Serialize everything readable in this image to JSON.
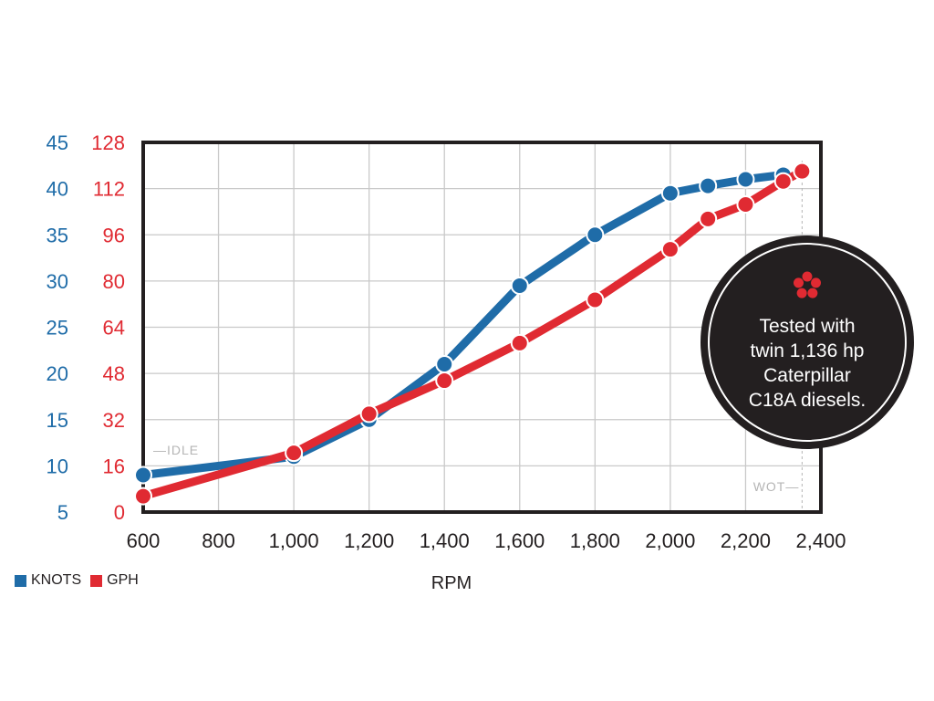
{
  "chart_data": {
    "type": "line",
    "xlabel": "RPM",
    "x_ticks": [
      "600",
      "800",
      "1,000",
      "1,200",
      "1,400",
      "1,600",
      "1,800",
      "2,000",
      "2,200",
      "2,400"
    ],
    "xlim": [
      600,
      2400
    ],
    "left_axis": {
      "ticks": [
        "45",
        "40",
        "35",
        "30",
        "25",
        "20",
        "15",
        "10",
        "5"
      ],
      "ylim": [
        5,
        45
      ],
      "color": "#1f6ca8"
    },
    "right_axis": {
      "ticks": [
        "128",
        "112",
        "96",
        "80",
        "64",
        "48",
        "32",
        "16",
        "0"
      ],
      "ylim": [
        0,
        128
      ],
      "color": "#e02a32"
    },
    "series": [
      {
        "name": "KNOTS",
        "axis": "left",
        "color": "#1f6ca8",
        "x": [
          600,
          1000,
          1200,
          1400,
          1600,
          1800,
          2000,
          2100,
          2200,
          2300
        ],
        "y": [
          9.0,
          11.0,
          15.0,
          21.0,
          29.5,
          35.0,
          39.5,
          40.3,
          41.0,
          41.5
        ]
      },
      {
        "name": "GPH",
        "axis": "right",
        "color": "#e02a32",
        "x": [
          600,
          1000,
          1200,
          1400,
          1600,
          1800,
          2000,
          2100,
          2200,
          2300,
          2350
        ],
        "y": [
          5.5,
          20.5,
          34.0,
          45.5,
          58.5,
          73.5,
          91.0,
          101.5,
          106.5,
          114.5,
          118.0
        ]
      }
    ],
    "annotations": {
      "idle": "—IDLE",
      "wot": "WOT—",
      "wot_rpm": 2350
    },
    "grid": true,
    "legend": "bottom-left"
  },
  "legend": {
    "items": [
      {
        "label": "KNOTS",
        "color": "#1f6ca8"
      },
      {
        "label": "GPH",
        "color": "#e02a32"
      }
    ]
  },
  "badge": {
    "icon": "asterisk-flower-icon",
    "lines": [
      "Tested with",
      "twin 1,136 hp",
      "Caterpillar",
      "C18A diesels."
    ],
    "bg": "#231f20",
    "accent": "#e02a32"
  }
}
